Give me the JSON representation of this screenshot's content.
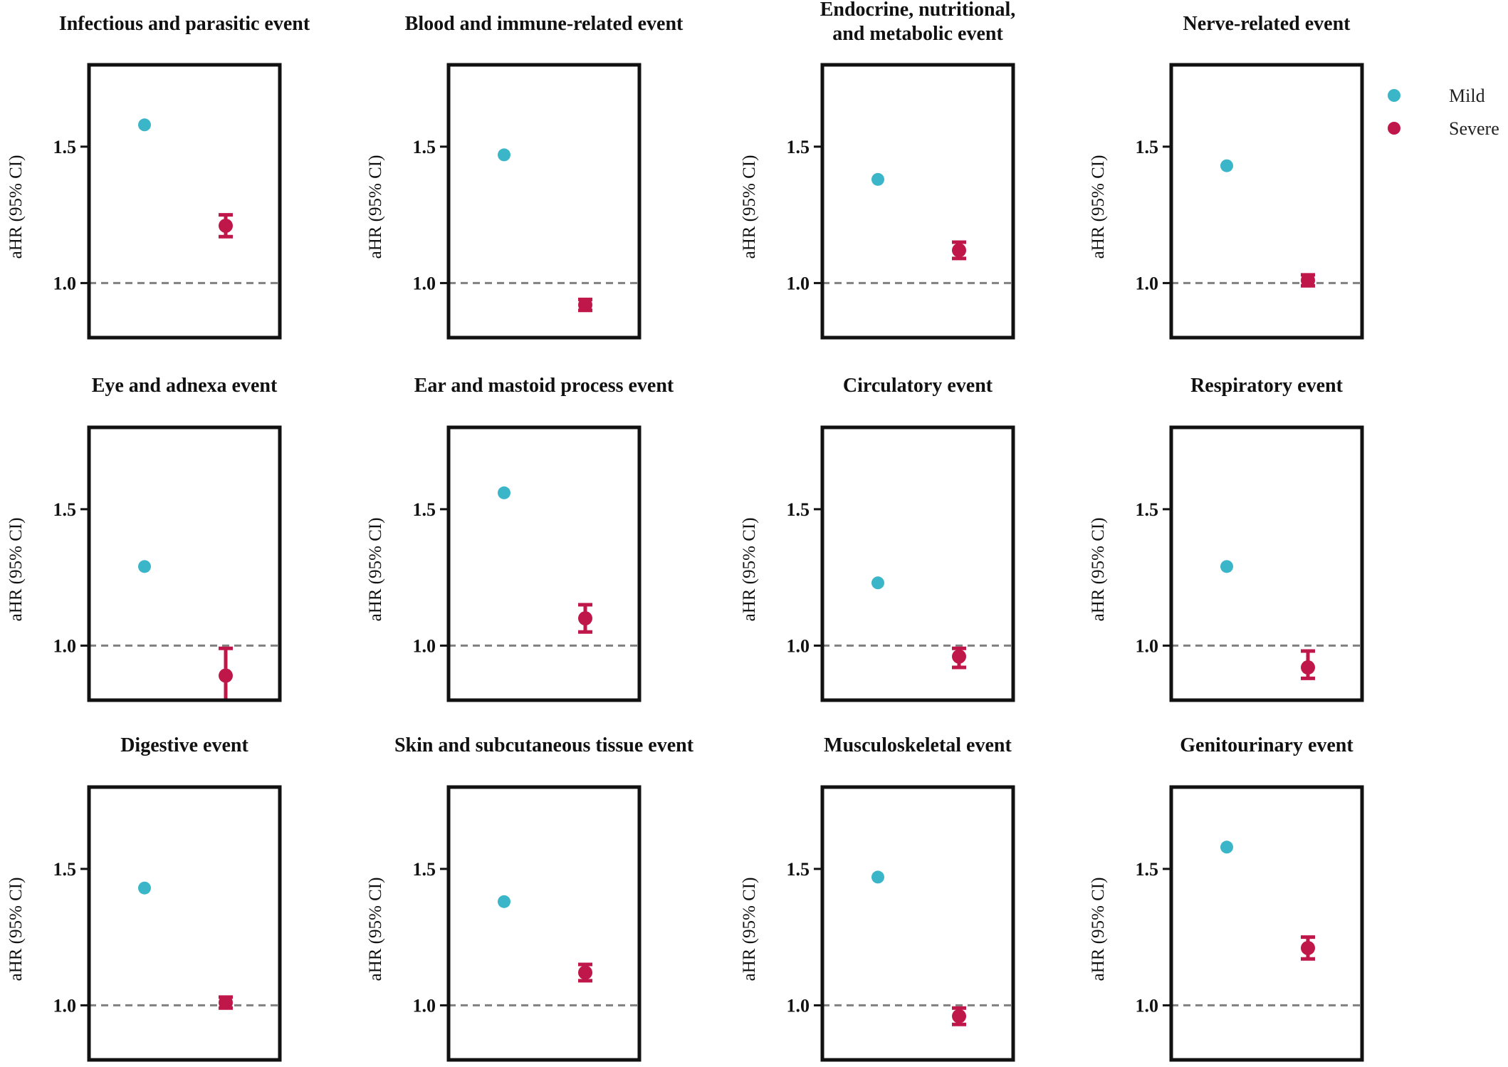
{
  "chart_data": {
    "type": "scatter",
    "ylabel": "aHR (95% CI)",
    "ylim": [
      0.8,
      1.8
    ],
    "yticks": [
      1.0,
      1.5
    ],
    "ytick_labels": [
      "1.0",
      "1.5"
    ],
    "reference_line": 1.0,
    "grid": false,
    "legend": {
      "placement": "top-right",
      "entries": [
        {
          "name": "Mild",
          "color": "#3bb6c9",
          "shape": "circle"
        },
        {
          "name": "Severe",
          "color": "#c0174a",
          "shape": "circle-with-error-bar"
        }
      ]
    },
    "panels": [
      {
        "title": [
          "Infectious and parasitic event"
        ],
        "mild": 1.58,
        "severe": {
          "value": 1.21,
          "lower": 1.17,
          "upper": 1.25
        }
      },
      {
        "title": [
          "Blood and immune-related event"
        ],
        "mild": 1.47,
        "severe": {
          "value": 0.92,
          "lower": 0.9,
          "upper": 0.94
        }
      },
      {
        "title": [
          "Endocrine, nutritional,",
          "and metabolic event"
        ],
        "mild": 1.38,
        "severe": {
          "value": 1.12,
          "lower": 1.09,
          "upper": 1.15
        }
      },
      {
        "title": [
          "Nerve-related event"
        ],
        "mild": 1.43,
        "severe": {
          "value": 1.01,
          "lower": 0.99,
          "upper": 1.03
        }
      },
      {
        "title": [
          "Eye and adnexa event"
        ],
        "mild": 1.29,
        "severe": {
          "value": 0.89,
          "lower": 0.8,
          "upper": 0.99
        }
      },
      {
        "title": [
          "Ear and mastoid process event"
        ],
        "mild": 1.56,
        "severe": {
          "value": 1.1,
          "lower": 1.05,
          "upper": 1.15
        }
      },
      {
        "title": [
          "Circulatory event"
        ],
        "mild": 1.23,
        "severe": {
          "value": 0.96,
          "lower": 0.92,
          "upper": 0.99
        }
      },
      {
        "title": [
          "Respiratory event"
        ],
        "mild": 1.29,
        "severe": {
          "value": 0.92,
          "lower": 0.88,
          "upper": 0.98
        }
      },
      {
        "title": [
          "Digestive event"
        ],
        "mild": 1.43,
        "severe": {
          "value": 1.01,
          "lower": 0.99,
          "upper": 1.03
        }
      },
      {
        "title": [
          "Skin and subcutaneous tissue event"
        ],
        "mild": 1.38,
        "severe": {
          "value": 1.12,
          "lower": 1.09,
          "upper": 1.15
        }
      },
      {
        "title": [
          "Musculoskeletal event"
        ],
        "mild": 1.47,
        "severe": {
          "value": 0.96,
          "lower": 0.93,
          "upper": 0.99
        }
      },
      {
        "title": [
          "Genitourinary event"
        ],
        "mild": 1.58,
        "severe": {
          "value": 1.21,
          "lower": 1.17,
          "upper": 1.25
        }
      }
    ]
  }
}
